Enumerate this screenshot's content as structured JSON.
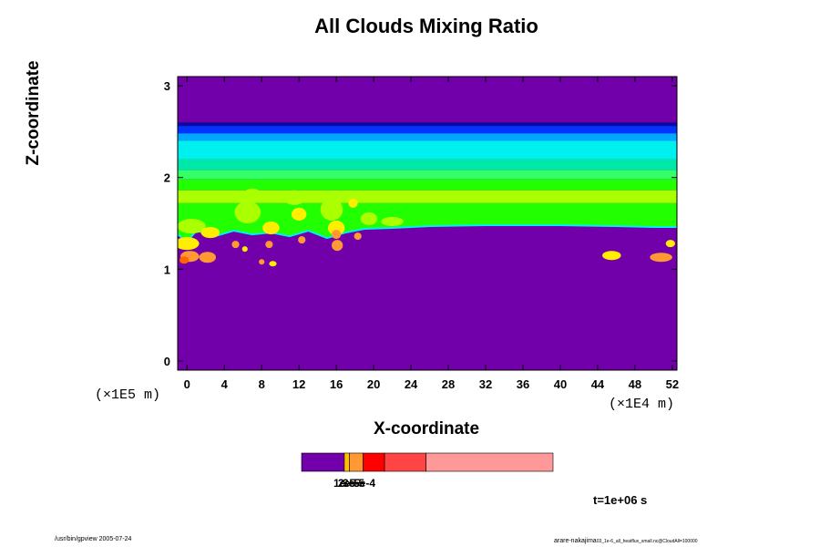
{
  "chart_data": {
    "type": "heatmap",
    "title": "All Clouds Mixing Ratio",
    "xlabel": "X-coordinate",
    "ylabel": "Z-coordinate",
    "xlim": [
      -1,
      52.5
    ],
    "ylim": [
      -0.1,
      3.1
    ],
    "x_ticks": [
      0,
      4,
      8,
      12,
      16,
      20,
      24,
      28,
      32,
      36,
      40,
      44,
      48,
      52
    ],
    "y_ticks": [
      0,
      1,
      2,
      3
    ],
    "x_unit": "(×1E4 m)",
    "y_unit": "(×1E5 m)",
    "colorbar_labels": [
      "1e-5",
      "2e-5",
      "3e-5",
      "5e-4"
    ],
    "colors": {
      "background": "#7200AA",
      "bands": [
        "#0a0aa0",
        "#0033ff",
        "#00a8ff",
        "#00f0f0",
        "#00e8a8",
        "#33ff66",
        "#22ff00",
        "#aaff00",
        "#ffee00",
        "#ff9933",
        "#ff6600"
      ],
      "colorbar": [
        "#7200AA",
        "#ffc000",
        "#ff9933",
        "#ff0000",
        "#ff4444",
        "#ff9999"
      ]
    },
    "time_label": "t=1e+06 s"
  },
  "footer": {
    "left": "/usr/bin/gpview 2005-07-24",
    "right_main": "arare-nakajima",
    "right_small": "03_1e-6_all_heatflux_small.nc@CloudAll=100000"
  }
}
